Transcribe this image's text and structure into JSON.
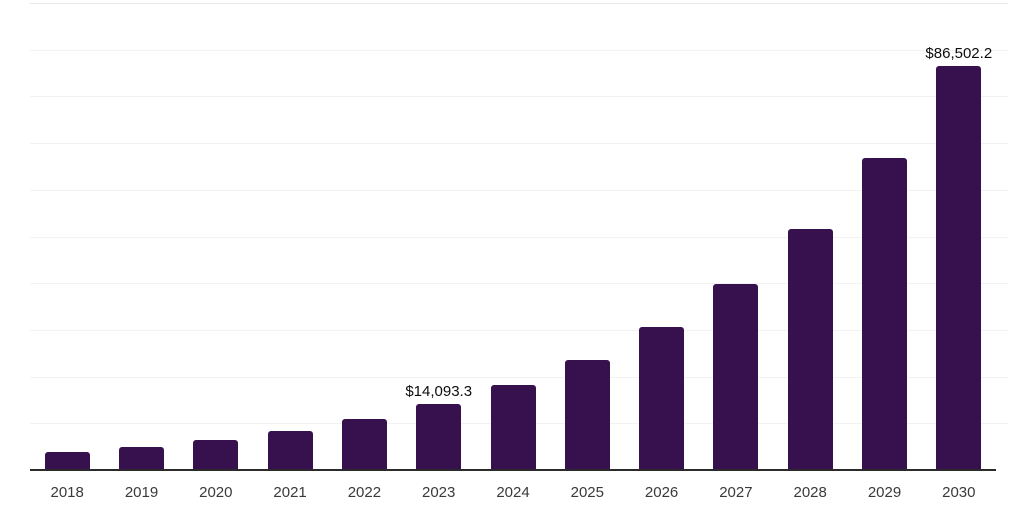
{
  "chart_data": {
    "type": "bar",
    "title": "",
    "xlabel": "",
    "ylabel": "",
    "categories": [
      "2018",
      "2019",
      "2020",
      "2021",
      "2022",
      "2023",
      "2024",
      "2025",
      "2026",
      "2027",
      "2028",
      "2029",
      "2030"
    ],
    "values": [
      3850,
      5000,
      6475,
      8390,
      10875,
      14093.3,
      18265,
      23670,
      30680,
      39760,
      51535,
      66790,
      86502.2
    ],
    "labeled_points": [
      {
        "category": "2023",
        "label": "$14,093.3"
      },
      {
        "category": "2030",
        "label": "$86,502.2"
      }
    ],
    "ylim": [
      0,
      100000
    ],
    "gridline_interval": 10000,
    "grid": "horizontal-only",
    "y_tick_labels": "none",
    "legend": "none"
  },
  "colors": {
    "bar": "#36114E",
    "gridline": "#F2F2F2",
    "gridline_top": "#E8E8E8",
    "axis_line": "#2B2B2B",
    "tick_label": "#3A3A3A",
    "data_label": "#0D0D0D",
    "background": "#FFFFFF"
  }
}
